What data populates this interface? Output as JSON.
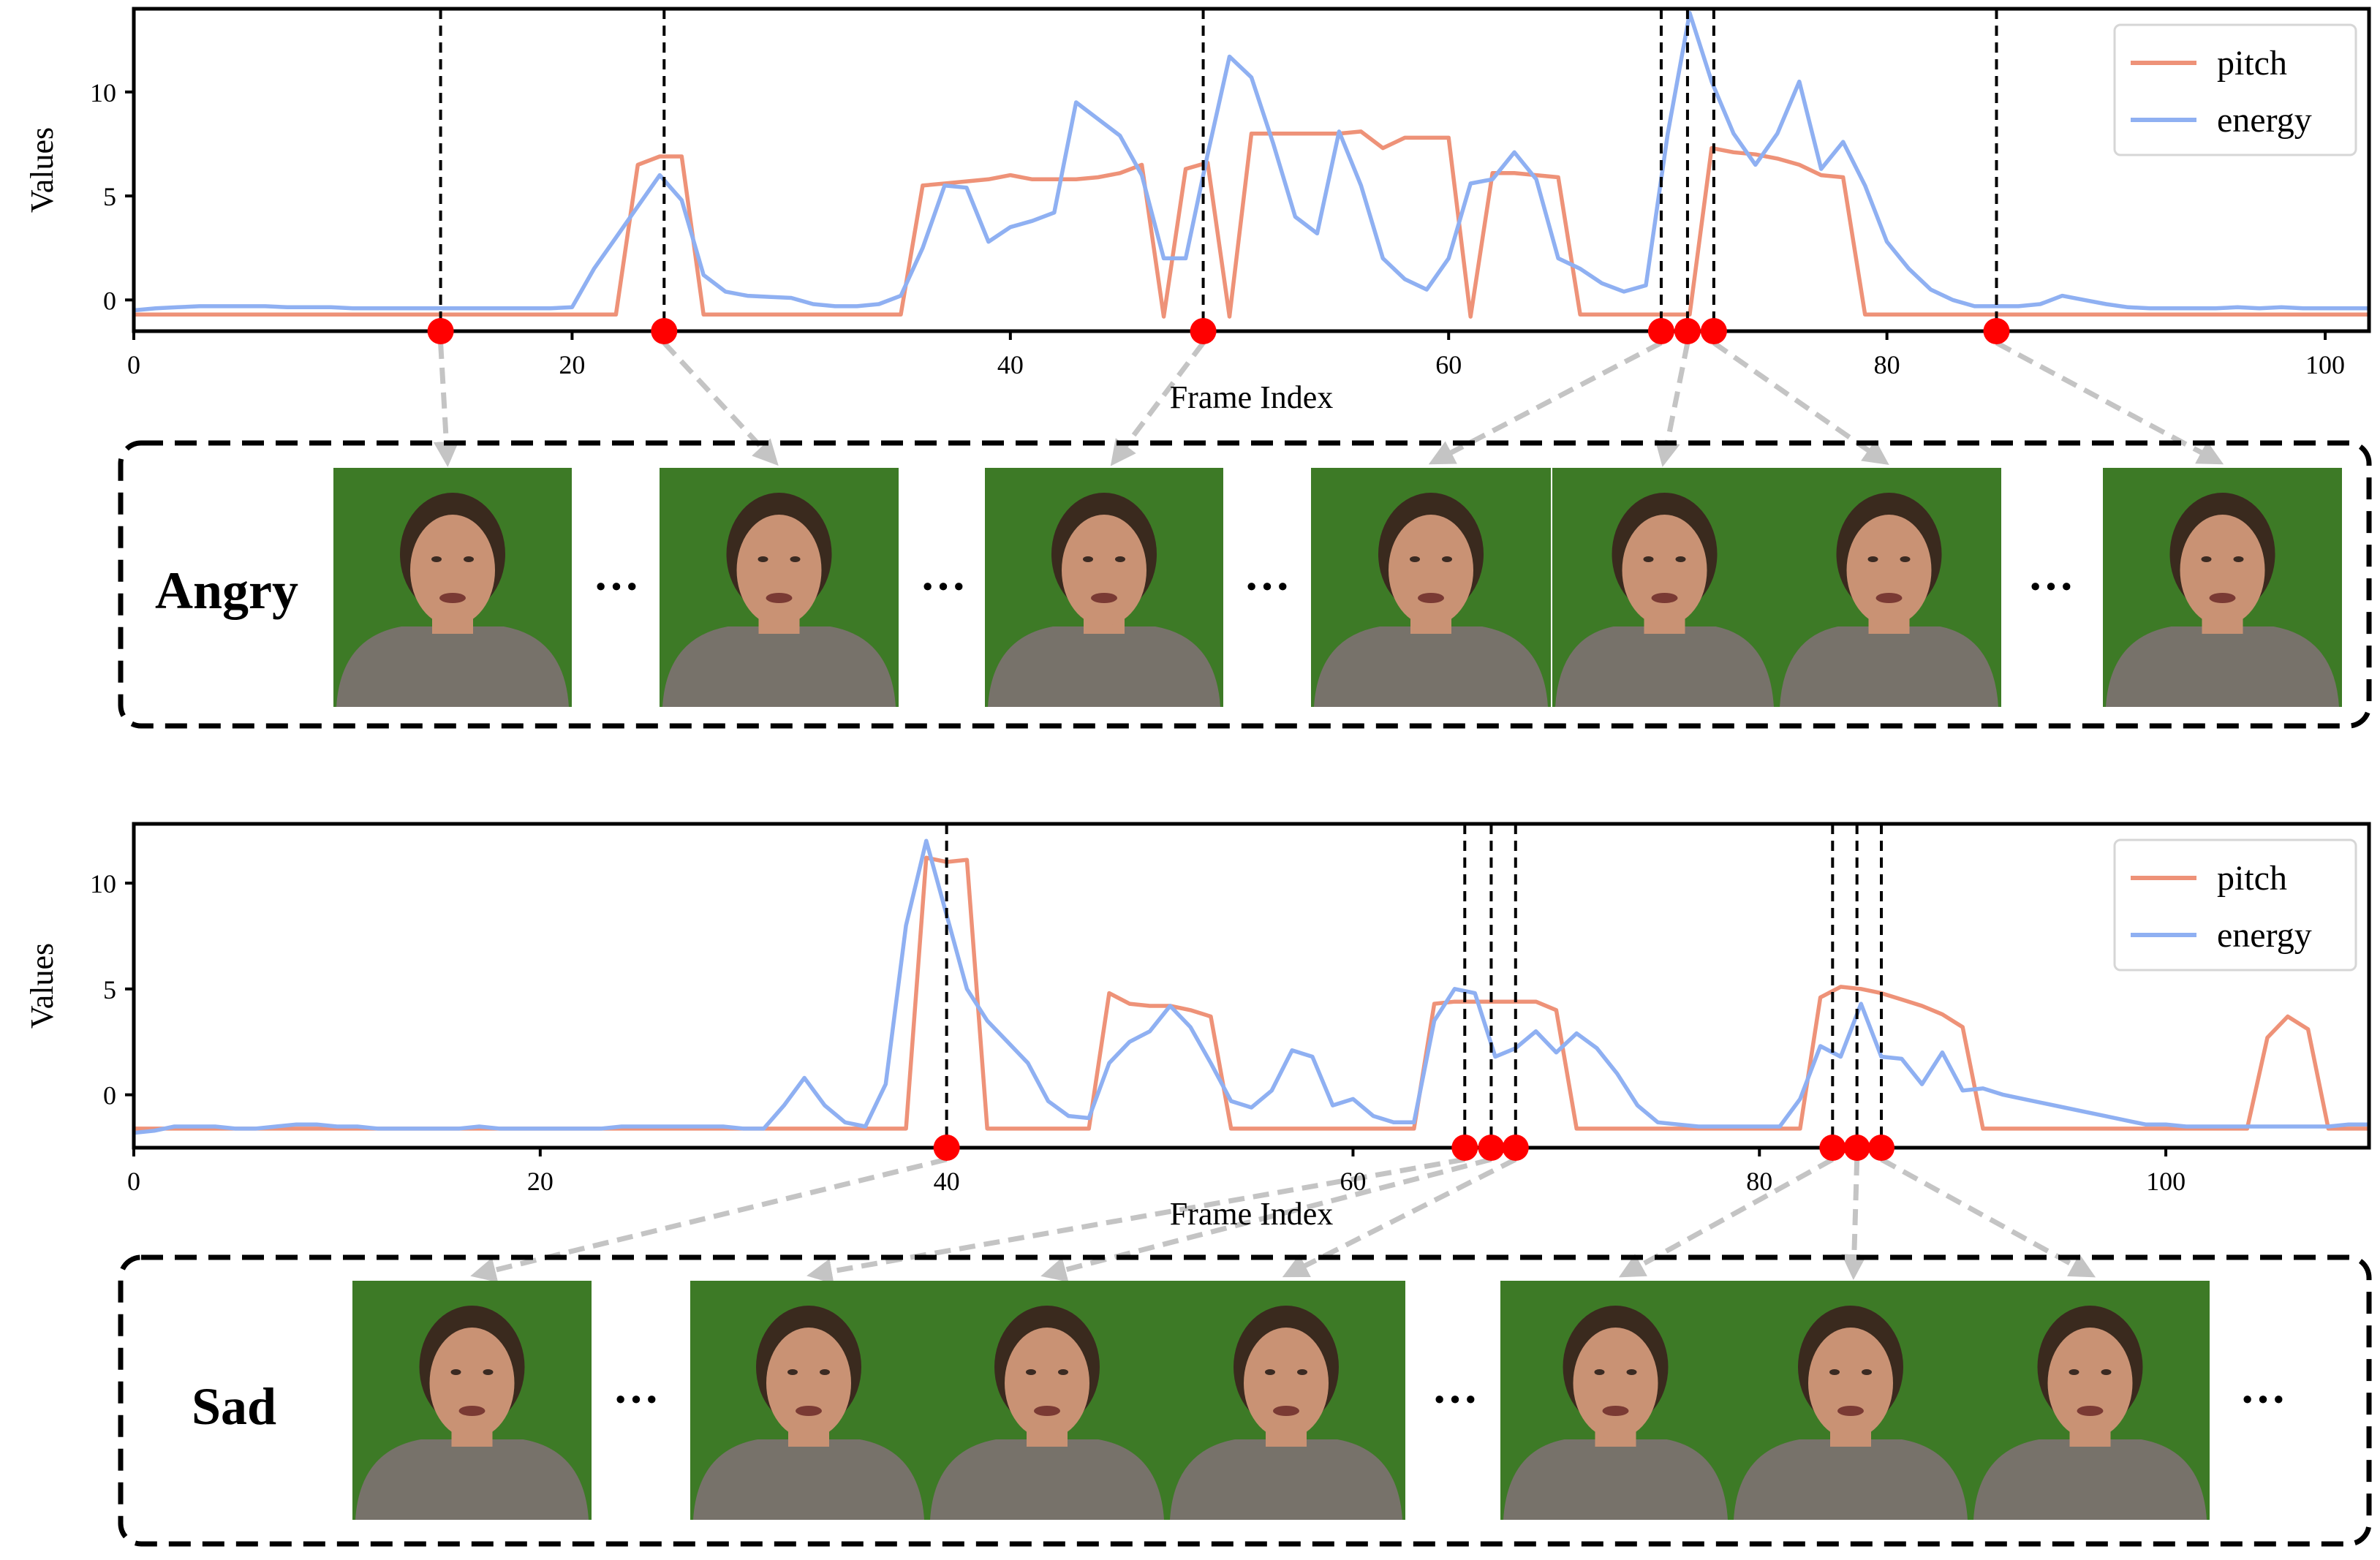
{
  "colors": {
    "pitch": "#ee9278",
    "energy": "#8fb0f2",
    "marker": "#ff0000",
    "arrow": "#c4c4c4",
    "frame_bg": "#3d7a26",
    "shirt": "#77726a",
    "skin": "#c99274",
    "hair": "#3a2a1e"
  },
  "chart_data": [
    {
      "type": "line",
      "emotion": "Angry",
      "xlabel": "Frame Index",
      "ylabel": "Values",
      "xlim": [
        0,
        102
      ],
      "ylim": [
        -1.5,
        14
      ],
      "xticks": [
        0,
        20,
        40,
        60,
        80,
        100
      ],
      "yticks": [
        0,
        5,
        10
      ],
      "legend": "top-right",
      "grid": false,
      "series": [
        {
          "name": "pitch",
          "x": [
            0,
            1,
            2,
            3,
            4,
            5,
            6,
            7,
            8,
            9,
            10,
            11,
            12,
            13,
            14,
            15,
            16,
            17,
            18,
            19,
            20,
            21,
            22,
            23,
            24,
            25,
            26,
            27,
            28,
            29,
            30,
            31,
            32,
            33,
            34,
            35,
            36,
            37,
            38,
            39,
            40,
            41,
            42,
            43,
            44,
            45,
            46,
            47,
            48,
            49,
            50,
            51,
            52,
            53,
            54,
            55,
            56,
            57,
            58,
            59,
            60,
            61,
            62,
            63,
            64,
            65,
            66,
            67,
            68,
            69,
            70,
            71,
            72,
            73,
            74,
            75,
            76,
            77,
            78,
            79,
            80,
            81,
            82,
            83,
            84,
            85,
            86,
            87,
            88,
            89,
            90,
            91,
            92,
            93,
            94,
            95,
            96,
            97,
            98,
            99,
            100,
            101,
            102
          ],
          "values": [
            -0.7,
            -0.7,
            -0.7,
            -0.7,
            -0.7,
            -0.7,
            -0.7,
            -0.7,
            -0.7,
            -0.7,
            -0.7,
            -0.7,
            -0.7,
            -0.7,
            -0.7,
            -0.7,
            -0.7,
            -0.7,
            -0.7,
            -0.7,
            -0.7,
            -0.7,
            -0.7,
            6.5,
            6.9,
            6.9,
            -0.7,
            -0.7,
            -0.7,
            -0.7,
            -0.7,
            -0.7,
            -0.7,
            -0.7,
            -0.7,
            -0.7,
            5.5,
            5.6,
            5.7,
            5.8,
            6.0,
            5.8,
            5.8,
            5.8,
            5.9,
            6.1,
            6.5,
            -0.8,
            6.3,
            6.6,
            -0.8,
            8.0,
            8.0,
            8.0,
            8.0,
            8.0,
            8.1,
            7.3,
            7.8,
            7.8,
            7.8,
            -0.8,
            6.1,
            6.1,
            6.0,
            5.9,
            -0.7,
            -0.7,
            -0.7,
            -0.7,
            -0.7,
            -0.7,
            7.3,
            7.1,
            7.0,
            6.8,
            6.5,
            6.0,
            5.9,
            -0.7,
            -0.7,
            -0.7,
            -0.7,
            -0.7,
            -0.7,
            -0.7,
            -0.7,
            -0.7,
            -0.7,
            -0.7,
            -0.7,
            -0.7,
            -0.7,
            -0.7,
            -0.7,
            -0.7,
            -0.7,
            -0.7,
            -0.7,
            -0.7,
            -0.7,
            -0.7,
            -0.7
          ]
        },
        {
          "name": "energy",
          "x": [
            0,
            1,
            2,
            3,
            4,
            5,
            6,
            7,
            8,
            9,
            10,
            11,
            12,
            13,
            14,
            15,
            16,
            17,
            18,
            19,
            20,
            21,
            22,
            23,
            24,
            25,
            26,
            27,
            28,
            29,
            30,
            31,
            32,
            33,
            34,
            35,
            36,
            37,
            38,
            39,
            40,
            41,
            42,
            43,
            44,
            45,
            46,
            47,
            48,
            49,
            50,
            51,
            52,
            53,
            54,
            55,
            56,
            57,
            58,
            59,
            60,
            61,
            62,
            63,
            64,
            65,
            66,
            67,
            68,
            69,
            70,
            71,
            72,
            73,
            74,
            75,
            76,
            77,
            78,
            79,
            80,
            81,
            82,
            83,
            84,
            85,
            86,
            87,
            88,
            89,
            90,
            91,
            92,
            93,
            94,
            95,
            96,
            97,
            98,
            99,
            100,
            101,
            102
          ],
          "values": [
            -0.5,
            -0.4,
            -0.35,
            -0.3,
            -0.3,
            -0.3,
            -0.3,
            -0.35,
            -0.35,
            -0.35,
            -0.4,
            -0.4,
            -0.4,
            -0.4,
            -0.4,
            -0.4,
            -0.4,
            -0.4,
            -0.4,
            -0.4,
            -0.35,
            1.5,
            3.0,
            4.5,
            6.0,
            4.8,
            1.2,
            0.4,
            0.2,
            0.15,
            0.1,
            -0.2,
            -0.3,
            -0.3,
            -0.2,
            0.2,
            2.5,
            5.5,
            5.4,
            2.8,
            3.5,
            3.8,
            4.2,
            9.5,
            8.7,
            7.9,
            6.0,
            2.0,
            2.0,
            7.0,
            11.7,
            10.7,
            7.5,
            4.0,
            3.2,
            8.1,
            5.5,
            2.0,
            1.0,
            0.5,
            2.0,
            5.6,
            5.8,
            7.1,
            5.8,
            2.0,
            1.5,
            0.8,
            0.4,
            0.7,
            8.0,
            13.8,
            10.5,
            8.0,
            6.5,
            8.0,
            10.5,
            6.3,
            7.6,
            5.5,
            2.8,
            1.5,
            0.5,
            0.0,
            -0.3,
            -0.3,
            -0.3,
            -0.2,
            0.2,
            0.0,
            -0.2,
            -0.35,
            -0.4,
            -0.4,
            -0.4,
            -0.4,
            -0.35,
            -0.4,
            -0.35,
            -0.4,
            -0.4,
            -0.4,
            -0.4
          ]
        }
      ],
      "markers_x": [
        14,
        24.2,
        48.8,
        69.7,
        70.9,
        72.1,
        85
      ]
    },
    {
      "type": "line",
      "emotion": "Sad",
      "xlabel": "Frame Index",
      "ylabel": "Values",
      "xlim": [
        0,
        110
      ],
      "ylim": [
        -2.5,
        12.8
      ],
      "xticks": [
        0,
        20,
        40,
        60,
        80,
        100
      ],
      "yticks": [
        0,
        5,
        10
      ],
      "legend": "top-right",
      "grid": false,
      "series": [
        {
          "name": "pitch",
          "x": [
            0,
            1,
            2,
            3,
            4,
            5,
            6,
            7,
            8,
            9,
            10,
            11,
            12,
            13,
            14,
            15,
            16,
            17,
            18,
            19,
            20,
            21,
            22,
            23,
            24,
            25,
            26,
            27,
            28,
            29,
            30,
            31,
            32,
            33,
            34,
            35,
            36,
            37,
            38,
            39,
            40,
            41,
            42,
            43,
            44,
            45,
            46,
            47,
            48,
            49,
            50,
            51,
            52,
            53,
            54,
            55,
            56,
            57,
            58,
            59,
            60,
            61,
            62,
            63,
            64,
            65,
            66,
            67,
            68,
            69,
            70,
            71,
            72,
            73,
            74,
            75,
            76,
            77,
            78,
            79,
            80,
            81,
            82,
            83,
            84,
            85,
            86,
            87,
            88,
            89,
            90,
            91,
            92,
            93,
            94,
            95,
            96,
            97,
            98,
            99,
            100,
            101,
            102,
            103,
            104,
            105,
            106,
            107,
            108,
            109,
            110
          ],
          "values": [
            -1.6,
            -1.6,
            -1.6,
            -1.6,
            -1.6,
            -1.6,
            -1.6,
            -1.6,
            -1.6,
            -1.6,
            -1.6,
            -1.6,
            -1.6,
            -1.6,
            -1.6,
            -1.6,
            -1.6,
            -1.6,
            -1.6,
            -1.6,
            -1.6,
            -1.6,
            -1.6,
            -1.6,
            -1.6,
            -1.6,
            -1.6,
            -1.6,
            -1.6,
            -1.6,
            -1.6,
            -1.6,
            -1.6,
            -1.6,
            -1.6,
            -1.6,
            -1.6,
            -1.6,
            -1.6,
            11.2,
            11.0,
            11.1,
            -1.6,
            -1.6,
            -1.6,
            -1.6,
            -1.6,
            -1.6,
            4.8,
            4.3,
            4.2,
            4.2,
            4.0,
            3.7,
            -1.6,
            -1.6,
            -1.6,
            -1.6,
            -1.6,
            -1.6,
            -1.6,
            -1.6,
            -1.6,
            -1.6,
            4.3,
            4.4,
            4.4,
            4.4,
            4.4,
            4.4,
            4.0,
            -1.6,
            -1.6,
            -1.6,
            -1.6,
            -1.6,
            -1.6,
            -1.6,
            -1.6,
            -1.6,
            -1.6,
            -1.6,
            -1.6,
            4.6,
            5.1,
            5.0,
            4.8,
            4.5,
            4.2,
            3.8,
            3.2,
            -1.6,
            -1.6,
            -1.6,
            -1.6,
            -1.6,
            -1.6,
            -1.6,
            -1.6,
            -1.6,
            -1.6,
            -1.6,
            -1.6,
            -1.6,
            -1.6,
            2.7,
            3.7,
            3.1,
            -1.6,
            -1.6,
            -1.6
          ]
        },
        {
          "name": "energy",
          "x": [
            0,
            1,
            2,
            3,
            4,
            5,
            6,
            7,
            8,
            9,
            10,
            11,
            12,
            13,
            14,
            15,
            16,
            17,
            18,
            19,
            20,
            21,
            22,
            23,
            24,
            25,
            26,
            27,
            28,
            29,
            30,
            31,
            32,
            33,
            34,
            35,
            36,
            37,
            38,
            39,
            40,
            41,
            42,
            43,
            44,
            45,
            46,
            47,
            48,
            49,
            50,
            51,
            52,
            53,
            54,
            55,
            56,
            57,
            58,
            59,
            60,
            61,
            62,
            63,
            64,
            65,
            66,
            67,
            68,
            69,
            70,
            71,
            72,
            73,
            74,
            75,
            76,
            77,
            78,
            79,
            80,
            81,
            82,
            83,
            84,
            85,
            86,
            87,
            88,
            89,
            90,
            91,
            92,
            93,
            94,
            95,
            96,
            97,
            98,
            99,
            100,
            101,
            102,
            103,
            104,
            105,
            106,
            107,
            108,
            109,
            110
          ],
          "values": [
            -1.8,
            -1.7,
            -1.5,
            -1.5,
            -1.5,
            -1.6,
            -1.6,
            -1.5,
            -1.4,
            -1.4,
            -1.5,
            -1.5,
            -1.6,
            -1.6,
            -1.6,
            -1.6,
            -1.6,
            -1.5,
            -1.6,
            -1.6,
            -1.6,
            -1.6,
            -1.6,
            -1.6,
            -1.5,
            -1.5,
            -1.5,
            -1.5,
            -1.5,
            -1.5,
            -1.6,
            -1.6,
            -0.5,
            0.8,
            -0.5,
            -1.3,
            -1.5,
            0.5,
            8.0,
            12.0,
            8.5,
            5.0,
            3.5,
            2.5,
            1.5,
            -0.3,
            -1.0,
            -1.1,
            1.5,
            2.5,
            3.0,
            4.2,
            3.2,
            1.5,
            -0.3,
            -0.6,
            0.2,
            2.1,
            1.8,
            -0.5,
            -0.2,
            -1.0,
            -1.3,
            -1.3,
            3.5,
            5.0,
            4.8,
            1.8,
            2.2,
            3.0,
            2.0,
            2.9,
            2.2,
            1.0,
            -0.5,
            -1.3,
            -1.4,
            -1.5,
            -1.5,
            -1.5,
            -1.5,
            -1.5,
            -0.2,
            2.3,
            1.8,
            4.3,
            1.8,
            1.7,
            0.5,
            2.0,
            0.2,
            0.3,
            0.0,
            -0.2,
            -0.4,
            -0.6,
            -0.8,
            -1.0,
            -1.2,
            -1.4,
            -1.4,
            -1.5,
            -1.5,
            -1.5,
            -1.5,
            -1.5,
            -1.5,
            -1.5,
            -1.5,
            -1.4,
            -1.4
          ]
        }
      ],
      "markers_x": [
        40,
        65.5,
        66.8,
        68,
        83.6,
        84.8,
        86
      ]
    }
  ],
  "panels": [
    {
      "emotion": "Angry",
      "ellipsis": "···"
    },
    {
      "emotion": "Sad",
      "ellipsis": "···"
    }
  ]
}
